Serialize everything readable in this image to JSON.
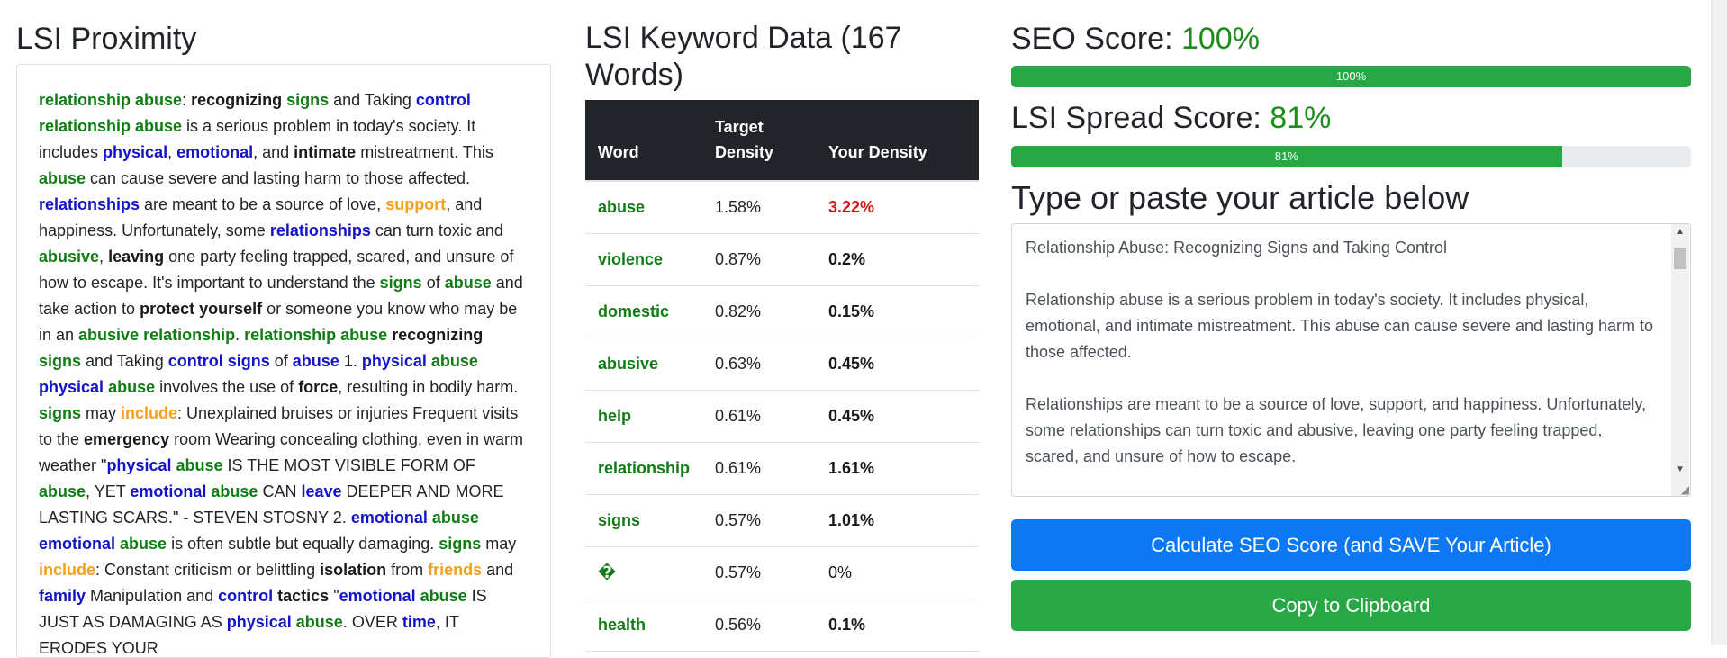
{
  "left": {
    "title": "LSI Proximity",
    "paragraph": [
      [
        "g",
        "relationship abuse"
      ],
      [
        "t",
        ": "
      ],
      [
        "k",
        "recognizing"
      ],
      [
        "t",
        " "
      ],
      [
        "g",
        "signs"
      ],
      [
        "t",
        " and Taking "
      ],
      [
        "b",
        "control"
      ],
      [
        "t",
        " "
      ],
      [
        "g",
        "relationship abuse"
      ],
      [
        "t",
        " is a serious problem in today's society. It includes "
      ],
      [
        "b",
        "physical"
      ],
      [
        "t",
        ", "
      ],
      [
        "b",
        "emotional"
      ],
      [
        "t",
        ", and "
      ],
      [
        "k",
        "intimate"
      ],
      [
        "t",
        " mistreatment. This "
      ],
      [
        "g",
        "abuse"
      ],
      [
        "t",
        " can cause severe and lasting harm to those affected. "
      ],
      [
        "b",
        "relationships"
      ],
      [
        "t",
        " are meant to be a source of love, "
      ],
      [
        "o",
        "support"
      ],
      [
        "t",
        ", and happiness. Unfortunately, some "
      ],
      [
        "b",
        "relationships"
      ],
      [
        "t",
        " can turn toxic and "
      ],
      [
        "g",
        "abusive"
      ],
      [
        "t",
        ", "
      ],
      [
        "k",
        "leaving"
      ],
      [
        "t",
        " one party feeling trapped, scared, and unsure of how to escape. It's important to understand the "
      ],
      [
        "g",
        "signs"
      ],
      [
        "t",
        " of "
      ],
      [
        "g",
        "abuse"
      ],
      [
        "t",
        " and take action to "
      ],
      [
        "k",
        "protect yourself"
      ],
      [
        "t",
        " or someone you know who may be in an "
      ],
      [
        "g",
        "abusive relationship"
      ],
      [
        "t",
        ". "
      ],
      [
        "g",
        "relationship abuse"
      ],
      [
        "t",
        " "
      ],
      [
        "k",
        "recognizing"
      ],
      [
        "t",
        " "
      ],
      [
        "g",
        "signs"
      ],
      [
        "t",
        " and Taking "
      ],
      [
        "b",
        "control signs"
      ],
      [
        "t",
        " of "
      ],
      [
        "b",
        "abuse"
      ],
      [
        "t",
        " 1. "
      ],
      [
        "b",
        "physical"
      ],
      [
        "t",
        " "
      ],
      [
        "g",
        "abuse"
      ],
      [
        "t",
        " "
      ],
      [
        "b",
        "physical"
      ],
      [
        "t",
        " "
      ],
      [
        "g",
        "abuse"
      ],
      [
        "t",
        " involves the use of "
      ],
      [
        "k",
        "force"
      ],
      [
        "t",
        ", resulting in bodily harm. "
      ],
      [
        "g",
        "signs"
      ],
      [
        "t",
        " may "
      ],
      [
        "o",
        "include"
      ],
      [
        "t",
        ": Unexplained bruises or injuries Frequent visits to the "
      ],
      [
        "k",
        "emergency"
      ],
      [
        "t",
        " room Wearing concealing clothing, even in warm weather \""
      ],
      [
        "b",
        "physical"
      ],
      [
        "t",
        " "
      ],
      [
        "g",
        "abuse"
      ],
      [
        "t",
        " IS THE MOST VISIBLE FORM OF "
      ],
      [
        "g",
        "abuse"
      ],
      [
        "t",
        ", YET "
      ],
      [
        "b",
        "emotional"
      ],
      [
        "t",
        " "
      ],
      [
        "g",
        "abuse"
      ],
      [
        "t",
        " CAN "
      ],
      [
        "b",
        "leave"
      ],
      [
        "t",
        " DEEPER AND MORE LASTING SCARS.\" - STEVEN STOSNY 2. "
      ],
      [
        "b",
        "emotional"
      ],
      [
        "t",
        " "
      ],
      [
        "g",
        "abuse"
      ],
      [
        "t",
        " "
      ],
      [
        "b",
        "emotional"
      ],
      [
        "t",
        " "
      ],
      [
        "g",
        "abuse"
      ],
      [
        "t",
        " is often subtle but equally damaging. "
      ],
      [
        "g",
        "signs"
      ],
      [
        "t",
        " may "
      ],
      [
        "o",
        "include"
      ],
      [
        "t",
        ": Constant criticism or belittling "
      ],
      [
        "k",
        "isolation"
      ],
      [
        "t",
        " from "
      ],
      [
        "o",
        "friends"
      ],
      [
        "t",
        " and "
      ],
      [
        "b",
        "family"
      ],
      [
        "t",
        " Manipulation and "
      ],
      [
        "b",
        "control"
      ],
      [
        "t",
        " "
      ],
      [
        "k",
        "tactics"
      ],
      [
        "t",
        " \""
      ],
      [
        "b",
        "emotional"
      ],
      [
        "t",
        " "
      ],
      [
        "g",
        "abuse"
      ],
      [
        "t",
        " IS JUST AS DAMAGING AS "
      ],
      [
        "b",
        "physical"
      ],
      [
        "t",
        " "
      ],
      [
        "g",
        "abuse"
      ],
      [
        "t",
        ". OVER "
      ],
      [
        "b",
        "time"
      ],
      [
        "t",
        ", IT ERODES YOUR"
      ]
    ]
  },
  "middle": {
    "title": "LSI Keyword Data (167 Words)",
    "headers": [
      "Word",
      "Target Density",
      "Your Density"
    ],
    "rows": [
      {
        "word": "abuse",
        "target": "1.58%",
        "your": "3.22%",
        "style": "red"
      },
      {
        "word": "violence",
        "target": "0.87%",
        "your": "0.2%",
        "style": "bold"
      },
      {
        "word": "domestic",
        "target": "0.82%",
        "your": "0.15%",
        "style": "bold"
      },
      {
        "word": "abusive",
        "target": "0.63%",
        "your": "0.45%",
        "style": "bold"
      },
      {
        "word": "help",
        "target": "0.61%",
        "your": "0.45%",
        "style": "bold"
      },
      {
        "word": "relationship",
        "target": "0.61%",
        "your": "1.61%",
        "style": "bold"
      },
      {
        "word": "signs",
        "target": "0.57%",
        "your": "1.01%",
        "style": "bold"
      },
      {
        "word": "�",
        "target": "0.57%",
        "your": "0%",
        "style": "plain"
      },
      {
        "word": "health",
        "target": "0.56%",
        "your": "0.1%",
        "style": "bold"
      }
    ],
    "colors": {
      "header_bg": "#212529",
      "word": "#0f7d13",
      "over": "#d01818"
    }
  },
  "right": {
    "seo_label": "SEO Score: ",
    "seo_value": "100%",
    "seo_progress": 1.0,
    "seo_bar_text": "100%",
    "spread_label": "LSI Spread Score: ",
    "spread_value": "81%",
    "spread_progress": 0.81,
    "spread_bar_text": "81%",
    "editor_heading": "Type or paste your article below",
    "article": [
      "Relationship Abuse: Recognizing Signs and Taking Control",
      "Relationship abuse is a serious problem in today's society. It includes physical, emotional, and intimate mistreatment. This abuse can cause severe and lasting harm to those affected.",
      "Relationships are meant to be a source of love, support, and happiness. Unfortunately, some relationships can turn toxic and abusive, leaving one party feeling trapped, scared, and unsure of how to escape."
    ],
    "calc_button": "Calculate SEO Score (and SAVE Your Article)",
    "copy_button": "Copy to Clipboard",
    "colors": {
      "primary": "#0d77f4",
      "success": "#28a745",
      "score_text": "#1d8c1d"
    }
  }
}
